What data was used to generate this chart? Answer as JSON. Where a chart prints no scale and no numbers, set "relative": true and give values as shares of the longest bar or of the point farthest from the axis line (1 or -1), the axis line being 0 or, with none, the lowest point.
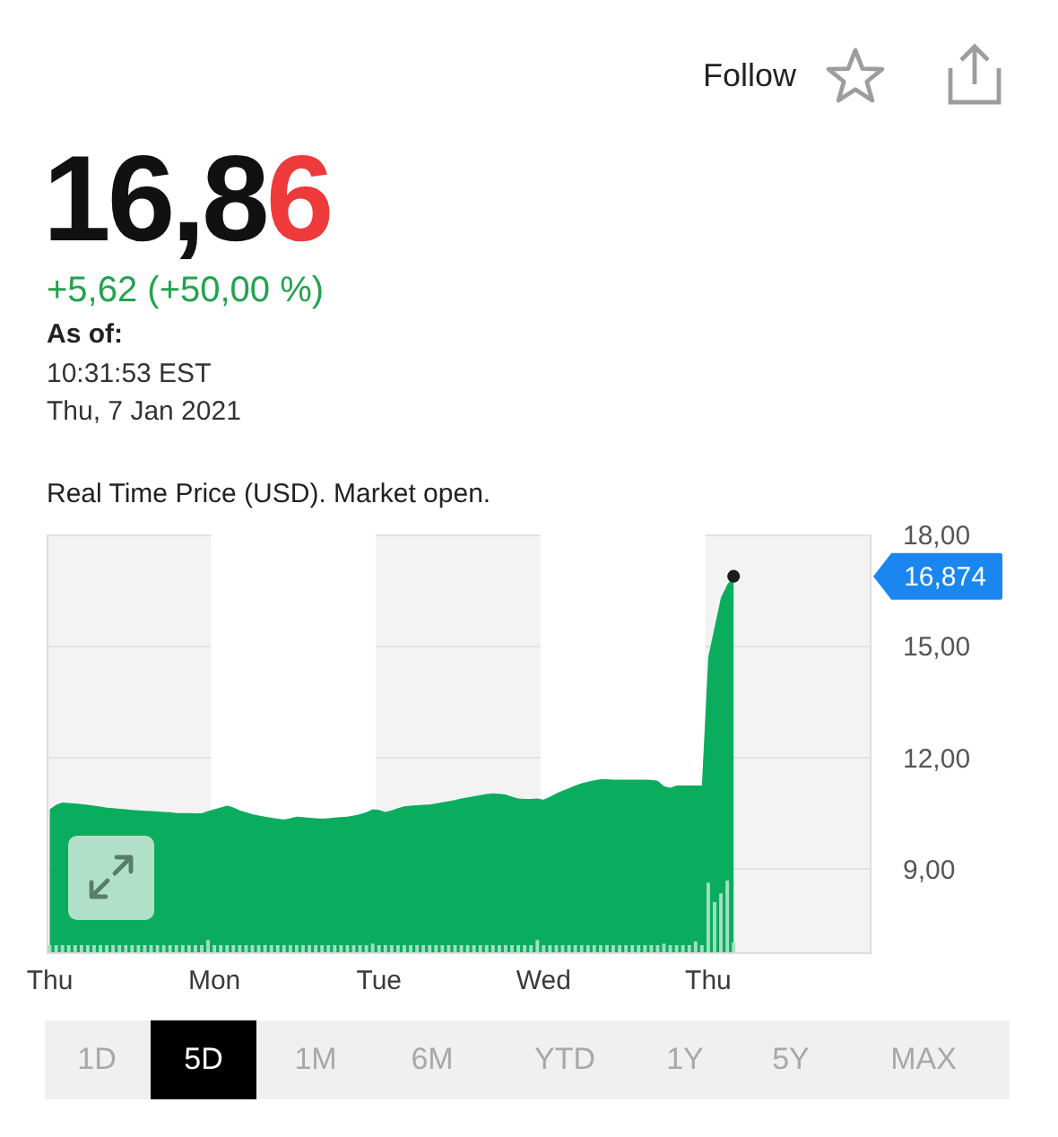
{
  "chart_data": [
    {
      "type": "area",
      "title": "16,86",
      "subtitle": "+5,62 (+50,00 %)",
      "tick_labels": "y",
      "annotations": [
        "As of:",
        "10:31:53 EST",
        "Thu, 7 Jan 2021",
        "Real Time Price (USD). Market open.",
        "Follow",
        "16,874",
        "1D",
        "5D",
        "1M",
        "6M",
        "YTD",
        "1Y",
        "5Y",
        "MAX"
      ],
      "categories": [
        null,
        null,
        null,
        null,
        null,
        null,
        null,
        null,
        null,
        null,
        null,
        null,
        null,
        null,
        null,
        null,
        null,
        null,
        null,
        null,
        null,
        null,
        null,
        null,
        null,
        null,
        "Mon",
        null,
        null,
        null,
        null,
        null,
        null,
        null,
        null,
        null,
        null,
        null,
        null,
        null,
        null,
        null,
        null,
        null,
        null,
        null,
        null,
        null,
        null,
        null,
        null,
        null,
        "Tue",
        null,
        null,
        null,
        null,
        null,
        null,
        null,
        null,
        null,
        null,
        null,
        null,
        null,
        null,
        null,
        null,
        null,
        null,
        null,
        null,
        null,
        null,
        null,
        null,
        null,
        "Wed",
        null,
        null,
        null,
        null,
        null,
        null,
        null,
        null,
        null,
        null,
        null,
        null,
        null,
        null,
        null,
        null,
        null,
        null,
        null,
        null,
        null,
        null,
        null,
        null,
        null,
        "Thu",
        null,
        null,
        null,
        null,
        null,
        null,
        null,
        null,
        null,
        null,
        null,
        null,
        null,
        null,
        null,
        null,
        null,
        null,
        null,
        null,
        null,
        null,
        null,
        null,
        null
      ],
      "series": [
        {
          "type": "area",
          "color": "#0aad5e",
          "values": [
            10.6,
            10.72,
            10.78,
            10.77,
            10.76,
            10.74,
            10.72,
            10.7,
            10.67,
            10.64,
            10.63,
            10.61,
            10.6,
            10.58,
            10.57,
            10.56,
            10.55,
            10.54,
            10.53,
            10.52,
            10.5,
            10.5,
            10.5,
            10.49,
            10.49,
            10.55,
            10.6,
            10.65,
            10.7,
            10.65,
            10.57,
            10.52,
            10.47,
            10.43,
            10.4,
            10.37,
            10.35,
            10.32,
            10.36,
            10.4,
            10.39,
            10.37,
            10.36,
            10.35,
            10.36,
            10.38,
            10.39,
            10.4,
            10.43,
            10.47,
            10.52,
            10.6,
            10.58,
            10.53,
            10.57,
            10.63,
            10.68,
            10.7,
            10.71,
            10.72,
            10.73,
            10.76,
            10.79,
            10.82,
            10.85,
            10.89,
            10.92,
            10.95,
            10.98,
            11.01,
            11.03,
            11.02,
            11.0,
            10.94,
            10.89,
            10.88,
            10.88,
            10.89,
            10.86,
            10.94,
            11.03,
            11.1,
            11.17,
            11.24,
            11.3,
            11.34,
            11.38,
            11.41,
            11.41,
            11.4,
            11.4,
            11.4,
            11.4,
            11.4,
            11.4,
            11.39,
            11.37,
            11.22,
            11.18,
            11.24,
            11.24,
            11.24,
            11.24,
            11.24,
            14.7,
            15.5,
            16.3,
            16.65,
            16.874,
            null,
            null,
            null,
            null,
            null,
            null,
            null,
            null,
            null,
            null,
            null,
            null,
            null,
            null,
            null,
            null,
            null,
            null,
            null,
            null,
            null
          ]
        },
        {
          "type": "scatter",
          "color": "#1c1c1c",
          "marker": "circle",
          "values": [
            null,
            null,
            null,
            null,
            null,
            null,
            null,
            null,
            null,
            null,
            null,
            null,
            null,
            null,
            null,
            null,
            null,
            null,
            null,
            null,
            null,
            null,
            null,
            null,
            null,
            null,
            null,
            null,
            null,
            null,
            null,
            null,
            null,
            null,
            null,
            null,
            null,
            null,
            null,
            null,
            null,
            null,
            null,
            null,
            null,
            null,
            null,
            null,
            null,
            null,
            null,
            null,
            null,
            null,
            null,
            null,
            null,
            null,
            null,
            null,
            null,
            null,
            null,
            null,
            null,
            null,
            null,
            null,
            null,
            null,
            null,
            null,
            null,
            null,
            null,
            null,
            null,
            null,
            null,
            null,
            null,
            null,
            null,
            null,
            null,
            null,
            null,
            null,
            null,
            null,
            null,
            null,
            null,
            null,
            null,
            null,
            null,
            null,
            null,
            null,
            null,
            null,
            null,
            null,
            null,
            null,
            null,
            null,
            16.874,
            null,
            null,
            null,
            null,
            null,
            null,
            null,
            null,
            null,
            null,
            null,
            null,
            null,
            null,
            null,
            null,
            null,
            null,
            null,
            null,
            null
          ]
        }
      ],
      "ylim": [
        6.75,
        18
      ],
      "yticks": [
        {
          "value": 9,
          "label": "9,00"
        },
        {
          "value": 12,
          "label": "12,00"
        },
        {
          "value": 15,
          "label": "15,00"
        },
        {
          "value": 18,
          "label": "18,00"
        }
      ],
      "grid": "y",
      "bands": [
        {
          "axis": "x",
          "from": "Mon",
          "to": "Tue",
          "color": "#ffffff"
        },
        {
          "axis": "x",
          "from": "Wed",
          "to": "Thu",
          "color": "#ffffff"
        }
      ]
    },
    {
      "type": "bar",
      "relative": true,
      "color": "#a3dfc0",
      "categories": [
        "Thu",
        null,
        null,
        null,
        null,
        null,
        null,
        null,
        null,
        null,
        null,
        null,
        null,
        null,
        null,
        null,
        null,
        null,
        null,
        null,
        null,
        null,
        null,
        null,
        null,
        null,
        "Mon",
        null,
        null,
        null,
        null,
        null,
        null,
        null,
        null,
        null,
        null,
        null,
        null,
        null,
        null,
        null,
        null,
        null,
        null,
        null,
        null,
        null,
        null,
        null,
        null,
        null,
        "Tue",
        null,
        null,
        null,
        null,
        null,
        null,
        null,
        null,
        null,
        null,
        null,
        null,
        null,
        null,
        null,
        null,
        null,
        null,
        null,
        null,
        null,
        null,
        null,
        null,
        null,
        "Wed",
        null,
        null,
        null,
        null,
        null,
        null,
        null,
        null,
        null,
        null,
        null,
        null,
        null,
        null,
        null,
        null,
        null,
        null,
        null,
        null,
        null,
        null,
        null,
        null,
        null,
        "Thu",
        null,
        null,
        null,
        null,
        null,
        null,
        null,
        null,
        null,
        null,
        null,
        null,
        null,
        null,
        null,
        null,
        null,
        null,
        null,
        null,
        null,
        null,
        null,
        null,
        null
      ],
      "values": [
        0.1,
        0.1,
        0.1,
        0.1,
        0.1,
        0.1,
        0.1,
        0.1,
        0.1,
        0.1,
        0.1,
        0.1,
        0.1,
        0.1,
        0.1,
        0.1,
        0.1,
        0.1,
        0.1,
        0.1,
        0.1,
        0.1,
        0.1,
        0.1,
        0.1,
        0.17,
        0.1,
        0.1,
        0.1,
        0.1,
        0.1,
        0.1,
        0.1,
        0.1,
        0.1,
        0.1,
        0.1,
        0.1,
        0.1,
        0.1,
        0.1,
        0.1,
        0.1,
        0.1,
        0.1,
        0.1,
        0.1,
        0.1,
        0.1,
        0.1,
        0.1,
        0.12,
        0.1,
        0.1,
        0.1,
        0.1,
        0.1,
        0.1,
        0.1,
        0.1,
        0.1,
        0.1,
        0.1,
        0.1,
        0.1,
        0.1,
        0.1,
        0.1,
        0.1,
        0.1,
        0.1,
        0.1,
        0.1,
        0.1,
        0.1,
        0.1,
        0.1,
        0.17,
        0.1,
        0.1,
        0.1,
        0.1,
        0.1,
        0.1,
        0.1,
        0.1,
        0.1,
        0.1,
        0.1,
        0.1,
        0.1,
        0.1,
        0.1,
        0.1,
        0.1,
        0.1,
        0.1,
        0.12,
        0.1,
        0.1,
        0.1,
        0.1,
        0.15,
        0.1,
        0.97,
        0.7,
        0.82,
        1,
        0.14,
        null,
        null,
        null,
        null,
        null,
        null,
        null,
        null,
        null,
        null,
        null,
        null,
        null,
        null,
        null,
        null,
        null,
        null,
        null,
        null,
        null
      ]
    }
  ]
}
